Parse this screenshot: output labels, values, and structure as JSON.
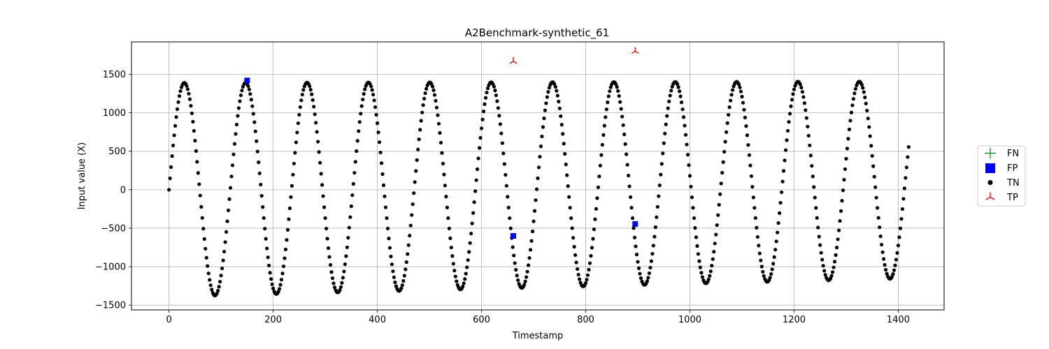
{
  "chart_data": {
    "type": "scatter",
    "title": "A2Benchmark-synthetic_61",
    "xlabel": "Timestamp",
    "ylabel": "Input value (X)",
    "xlim": [
      -72,
      1488
    ],
    "ylim": [
      -1562,
      1922
    ],
    "xticks": [
      0,
      200,
      400,
      600,
      800,
      1000,
      1200,
      1400
    ],
    "yticks": [
      -1500,
      -1000,
      -500,
      0,
      500,
      1000,
      1500
    ],
    "xtick_labels": [
      "0",
      "200",
      "400",
      "600",
      "800",
      "1000",
      "1200",
      "1400"
    ],
    "ytick_labels": [
      "−1500",
      "−1000",
      "−500",
      "0",
      "500",
      "1000",
      "1500"
    ],
    "grid": true,
    "legend_position": "outside-right",
    "base_series": {
      "x_start": 0,
      "x_end": 1420,
      "period": 117.8,
      "amplitude_start": 1390,
      "amplitude_end": 1280,
      "amplitude_growth_per_step": 0.09
    },
    "series": [
      {
        "name": "FN",
        "marker": "plus",
        "color": "#008000",
        "points": []
      },
      {
        "name": "FP",
        "marker": "square",
        "color": "#0000ff",
        "points": [
          {
            "x": 150,
            "y": 1420
          },
          {
            "x": 661,
            "y": -600
          },
          {
            "x": 895,
            "y": -445
          }
        ]
      },
      {
        "name": "TN",
        "marker": "circle",
        "color": "#000000",
        "points": "base_series"
      },
      {
        "name": "TP",
        "marker": "tri_up",
        "color": "#ff0000",
        "points": [
          {
            "x": 661,
            "y": 1670
          },
          {
            "x": 895,
            "y": 1800
          }
        ]
      }
    ]
  }
}
